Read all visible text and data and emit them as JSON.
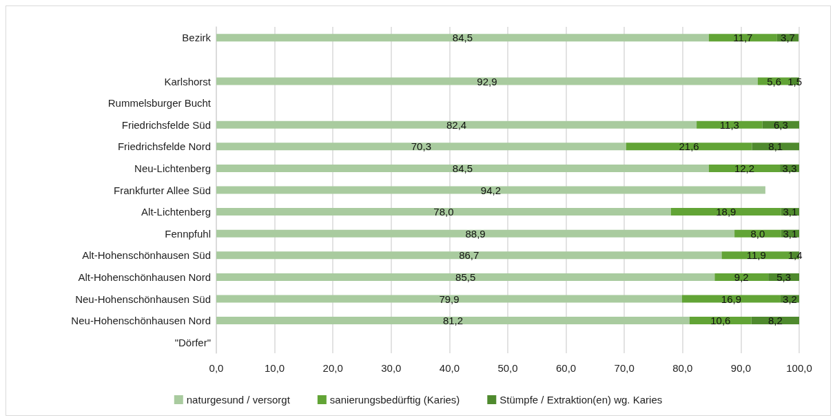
{
  "chart_data": {
    "type": "bar",
    "orientation": "horizontal",
    "stacked": true,
    "categories": [
      "Bezirk",
      null,
      "Karlshorst",
      "Rummelsburger Bucht",
      "Friedrichsfelde Süd",
      "Friedrichsfelde Nord",
      "Neu-Lichtenberg",
      "Frankfurter Allee Süd",
      "Alt-Lichtenberg",
      "Fennpfuhl",
      "Alt-Hohenschönhausen Süd",
      "Alt-Hohenschönhausen Nord",
      "Neu-Hohenschönhausen Süd",
      "Neu-Hohenschönhausen Nord",
      "\"Dörfer\""
    ],
    "series": [
      {
        "name": "naturgesund / versorgt",
        "color": "#a9cb9f",
        "values": [
          84.5,
          null,
          92.9,
          null,
          82.4,
          70.3,
          84.5,
          94.2,
          78.0,
          88.9,
          86.7,
          85.5,
          79.9,
          81.2,
          null
        ],
        "value_labels": [
          "84,5",
          null,
          "92,9",
          null,
          "82,4",
          "70,3",
          "84,5",
          "94,2",
          "78,0",
          "88,9",
          "86,7",
          "85,5",
          "79,9",
          "81,2",
          null
        ]
      },
      {
        "name": "sanierungsbedürftig (Karies)",
        "color": "#62a436",
        "values": [
          11.7,
          null,
          5.6,
          null,
          11.3,
          21.6,
          12.2,
          null,
          18.9,
          8.0,
          11.9,
          9.2,
          16.9,
          10.6,
          null
        ],
        "value_labels": [
          "11,7",
          null,
          "5,6",
          null,
          "11,3",
          "21,6",
          "12,2",
          null,
          "18,9",
          "8,0",
          "11,9",
          "9,2",
          "16,9",
          "10,6",
          null
        ]
      },
      {
        "name": "Stümpfe / Extraktion(en) wg. Karies",
        "color": "#4f8a2e",
        "values": [
          3.7,
          null,
          1.5,
          null,
          6.3,
          8.1,
          3.3,
          null,
          3.1,
          3.1,
          1.4,
          5.3,
          3.2,
          8.2,
          null
        ],
        "value_labels": [
          "3,7",
          null,
          "1,5",
          null,
          "6,3",
          "8,1",
          "3,3",
          null,
          "3,1",
          "3,1",
          "1,4",
          "5,3",
          "3,2",
          "8,2",
          null
        ]
      }
    ],
    "xlim": [
      0,
      100
    ],
    "xticks": [
      {
        "value": 0,
        "label": "0,0"
      },
      {
        "value": 10,
        "label": "10,0"
      },
      {
        "value": 20,
        "label": "20,0"
      },
      {
        "value": 30,
        "label": "30,0"
      },
      {
        "value": 40,
        "label": "40,0"
      },
      {
        "value": 50,
        "label": "50,0"
      },
      {
        "value": 60,
        "label": "60,0"
      },
      {
        "value": 70,
        "label": "70,0"
      },
      {
        "value": 80,
        "label": "80,0"
      },
      {
        "value": 90,
        "label": "90,0"
      },
      {
        "value": 100,
        "label": "100,0"
      }
    ],
    "grid": "x",
    "legend": "bottom"
  }
}
